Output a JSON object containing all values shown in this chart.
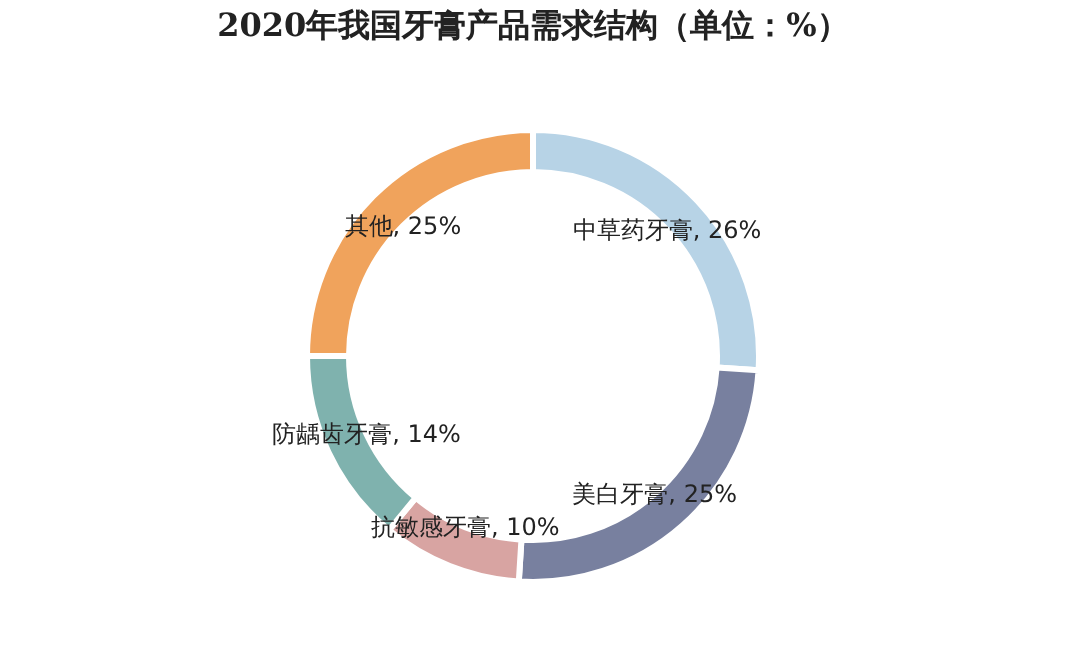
{
  "chart_data": {
    "type": "donut",
    "title": "2020年我国牙膏产品需求结构（单位：%）",
    "categories": [
      "中草药牙膏",
      "美白牙膏",
      "抗敏感牙膏",
      "防龋齿牙膏",
      "其他"
    ],
    "values": [
      26,
      25,
      10,
      14,
      25
    ],
    "colors": [
      "#b7d3e6",
      "#78809f",
      "#d8a4a2",
      "#7fb2ae",
      "#f0a35c"
    ],
    "value_labels": [
      "26%",
      "25%",
      "10%",
      "14%",
      "25%"
    ],
    "legend": false
  }
}
